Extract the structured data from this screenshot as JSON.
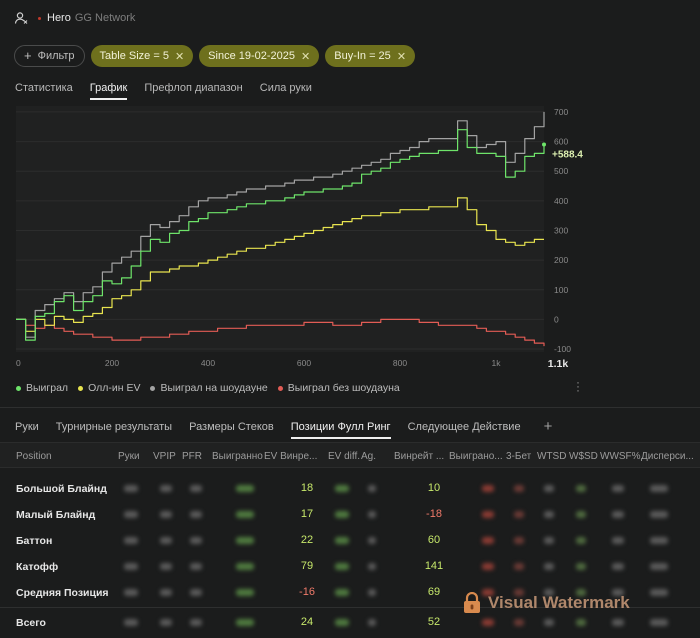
{
  "header": {
    "user": "Hero",
    "network": "GG Network"
  },
  "filters": {
    "add_label": "Фильтр",
    "chips": [
      "Table Size = 5",
      "Since 19-02-2025",
      "Buy-In = 25"
    ]
  },
  "tabs": [
    "Статистика",
    "График",
    "Префлоп диапазон",
    "Сила руки"
  ],
  "active_tab": "График",
  "chart_data": {
    "type": "line",
    "x": [
      0,
      20,
      40,
      60,
      80,
      100,
      120,
      140,
      160,
      180,
      200,
      220,
      240,
      260,
      280,
      300,
      320,
      340,
      360,
      380,
      400,
      420,
      440,
      460,
      480,
      500,
      520,
      540,
      560,
      580,
      600,
      620,
      640,
      660,
      680,
      700,
      720,
      740,
      760,
      780,
      800,
      820,
      840,
      860,
      880,
      900,
      920,
      940,
      960,
      980,
      1000,
      1020,
      1040,
      1060,
      1080,
      1100
    ],
    "x_ticks": [
      "0",
      "200",
      "400",
      "600",
      "800",
      "1k"
    ],
    "x_max_label": "1.1k",
    "xlim": [
      0,
      1100
    ],
    "y_ticks": [
      700,
      600,
      500,
      400,
      300,
      200,
      100,
      0,
      -100
    ],
    "ylim": [
      -110,
      720
    ],
    "series": [
      {
        "name": "Выиграл",
        "color": "#6ee46a",
        "values": [
          0,
          -70,
          10,
          20,
          60,
          80,
          30,
          60,
          80,
          130,
          120,
          140,
          180,
          230,
          270,
          260,
          290,
          300,
          330,
          340,
          360,
          360,
          370,
          380,
          390,
          390,
          400,
          400,
          410,
          420,
          430,
          430,
          440,
          440,
          450,
          460,
          490,
          500,
          510,
          530,
          540,
          550,
          560,
          560,
          570,
          570,
          640,
          580,
          560,
          560,
          550,
          480,
          500,
          550,
          560,
          590
        ]
      },
      {
        "name": "Олл-ин EV",
        "color": "#e8e44f",
        "values": [
          0,
          -40,
          0,
          -20,
          10,
          0,
          -10,
          10,
          20,
          40,
          70,
          80,
          100,
          130,
          160,
          160,
          170,
          180,
          180,
          190,
          200,
          210,
          220,
          230,
          240,
          240,
          250,
          260,
          270,
          280,
          290,
          300,
          310,
          320,
          330,
          340,
          350,
          350,
          360,
          360,
          370,
          370,
          370,
          380,
          380,
          380,
          410,
          370,
          320,
          300,
          270,
          260,
          250,
          260,
          270,
          270
        ]
      },
      {
        "name": "Выиграл на шоудауне",
        "color": "#a3a3a3",
        "values": [
          0,
          -60,
          30,
          50,
          70,
          90,
          60,
          90,
          110,
          160,
          190,
          210,
          230,
          280,
          320,
          310,
          330,
          350,
          380,
          400,
          410,
          410,
          420,
          430,
          440,
          440,
          450,
          450,
          460,
          470,
          470,
          480,
          480,
          490,
          500,
          510,
          520,
          530,
          540,
          560,
          570,
          580,
          600,
          610,
          610,
          610,
          670,
          620,
          580,
          590,
          600,
          530,
          560,
          610,
          650,
          700
        ]
      },
      {
        "name": "Выиграл без шоудауна",
        "color": "#e25c55",
        "values": [
          0,
          -20,
          -30,
          -20,
          -30,
          -40,
          -50,
          -50,
          -60,
          -60,
          -70,
          -70,
          -70,
          -60,
          -60,
          -60,
          -50,
          -50,
          -40,
          -40,
          -40,
          -30,
          -30,
          -30,
          -20,
          -20,
          -20,
          -20,
          -20,
          -20,
          -10,
          -10,
          -10,
          -20,
          -20,
          -20,
          -10,
          -10,
          0,
          0,
          0,
          0,
          -10,
          -10,
          -20,
          -20,
          -20,
          -20,
          -30,
          -40,
          -40,
          -50,
          -60,
          -70,
          -80,
          -90
        ]
      }
    ],
    "end_label": "+588.4"
  },
  "chart_menu_icon": "kebab-icon",
  "subtabs": [
    "Руки",
    "Турнирные результаты",
    "Размеры Стеков",
    "Позиции Фулл Ринг",
    "Следующее Действие"
  ],
  "active_subtab": "Позиции Фулл Ринг",
  "table": {
    "columns": [
      "Position",
      "Руки",
      "VPIP",
      "PFR",
      "Выигранно",
      "EV Винре...",
      "EV diff.",
      "Ag.",
      "Винрейт ...",
      "Выиграно...",
      "3-Бет",
      "WTSD",
      "W$SD",
      "WWSF%",
      "Дисперси..."
    ],
    "rows": [
      {
        "position": "Большой Блайнд",
        "ev_winrate": "18",
        "winrate": "10",
        "ev_color": "#c7e86b",
        "wr_color": "#c7e86b"
      },
      {
        "position": "Малый Блайнд",
        "ev_winrate": "17",
        "winrate": "-18",
        "ev_color": "#c7e86b",
        "wr_color": "#f07a6a"
      },
      {
        "position": "Баттон",
        "ev_winrate": "22",
        "winrate": "60",
        "ev_color": "#c7e86b",
        "wr_color": "#c7e86b"
      },
      {
        "position": "Катофф",
        "ev_winrate": "79",
        "winrate": "141",
        "ev_color": "#c7e86b",
        "wr_color": "#c7e86b"
      },
      {
        "position": "Средняя Позиция",
        "ev_winrate": "-16",
        "winrate": "69",
        "ev_color": "#f07a6a",
        "wr_color": "#c7e86b"
      }
    ],
    "total": {
      "position": "Всего",
      "ev_winrate": "24",
      "winrate": "52",
      "ev_color": "#c7e86b",
      "wr_color": "#c7e86b"
    }
  },
  "watermark": {
    "text": "Visual Watermark"
  }
}
